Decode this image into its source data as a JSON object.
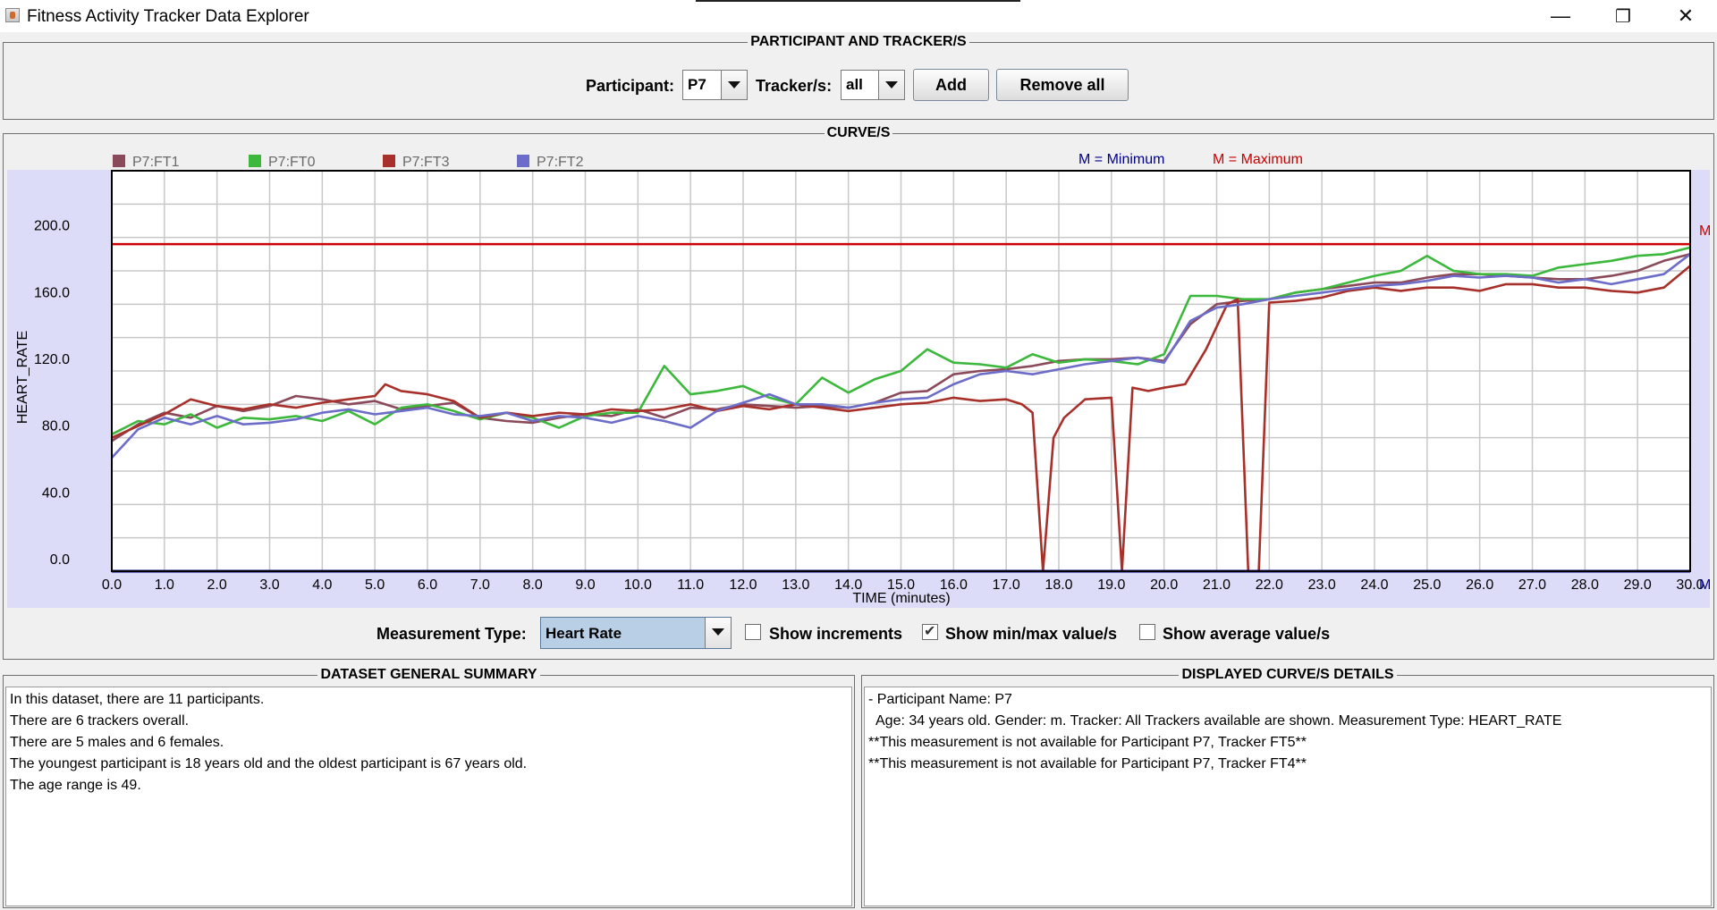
{
  "window": {
    "title": "Fitness Activity Tracker Data Explorer",
    "minimize": "—",
    "restore": "❐",
    "close": "✕"
  },
  "participant_panel": {
    "title": "PARTICIPANT AND TRACKER/S",
    "participant_label": "Participant:",
    "participant_value": "P7",
    "tracker_label": "Tracker/s:",
    "tracker_value": "all",
    "add_label": "Add",
    "remove_all_label": "Remove all"
  },
  "curves_panel": {
    "title": "CURVE/S",
    "min_legend": "M = Minimum",
    "max_legend": "M = Maximum",
    "min_color": "#00008b",
    "max_color": "#cc0000",
    "measurement_label": "Measurement Type:",
    "measurement_value": "Heart Rate",
    "show_increments": "Show increments",
    "show_increments_checked": false,
    "show_minmax": "Show min/max value/s",
    "show_minmax_checked": true,
    "show_average": "Show average value/s",
    "show_average_checked": false
  },
  "chart_data": {
    "type": "line",
    "title": "",
    "xlabel": "TIME (minutes)",
    "ylabel": "HEART_RATE",
    "xlim": [
      0,
      30
    ],
    "ylim": [
      0,
      240
    ],
    "x_ticks": [
      "0.0",
      "1.0",
      "2.0",
      "3.0",
      "4.0",
      "5.0",
      "6.0",
      "7.0",
      "8.0",
      "9.0",
      "10.0",
      "11.0",
      "12.0",
      "13.0",
      "14.0",
      "15.0",
      "16.0",
      "17.0",
      "18.0",
      "19.0",
      "20.0",
      "21.0",
      "22.0",
      "23.0",
      "24.0",
      "25.0",
      "26.0",
      "27.0",
      "28.0",
      "29.0",
      "30.0"
    ],
    "y_ticks": [
      "0.0",
      "40.0",
      "80.0",
      "120.0",
      "160.0",
      "200.0"
    ],
    "grid": true,
    "legend_position": "top-left",
    "max_line": {
      "value": 196,
      "label": "M"
    },
    "min_line": {
      "value": 0,
      "label": "M"
    },
    "series": [
      {
        "name": "P7:FT1",
        "color": "#8b4a5a",
        "x": [
          0,
          0.5,
          1,
          1.5,
          2,
          2.5,
          3,
          3.5,
          4,
          4.5,
          5,
          5.5,
          6,
          6.5,
          7,
          7.5,
          8,
          8.5,
          9,
          9.5,
          10,
          10.5,
          11,
          11.5,
          12,
          12.5,
          13,
          13.5,
          14,
          14.5,
          15,
          15.5,
          16,
          16.5,
          17,
          17.5,
          18,
          18.5,
          19,
          19.5,
          20,
          20.5,
          21,
          21.5,
          22,
          22.5,
          23,
          23.5,
          24,
          24.5,
          25,
          25.5,
          26,
          26.5,
          27,
          27.5,
          28,
          28.5,
          29,
          29.5,
          30
        ],
        "y": [
          78,
          88,
          95,
          92,
          99,
          96,
          99,
          105,
          103,
          100,
          102,
          97,
          99,
          101,
          92,
          90,
          89,
          92,
          94,
          93,
          97,
          92,
          98,
          97,
          100,
          99,
          98,
          99,
          98,
          101,
          107,
          108,
          118,
          120,
          121,
          123,
          126,
          127,
          127,
          128,
          126,
          148,
          160,
          162,
          163,
          167,
          169,
          171,
          173,
          173,
          176,
          178,
          178,
          177,
          176,
          175,
          175,
          177,
          180,
          186,
          190
        ]
      },
      {
        "name": "P7:FT0",
        "color": "#3cb83c",
        "x": [
          0,
          0.5,
          1,
          1.5,
          2,
          2.5,
          3,
          3.5,
          4,
          4.5,
          5,
          5.5,
          6,
          6.5,
          7,
          7.5,
          8,
          8.5,
          9,
          9.5,
          10,
          10.5,
          11,
          11.5,
          12,
          12.5,
          13,
          13.5,
          14,
          14.5,
          15,
          15.5,
          16,
          16.5,
          17,
          17.5,
          18,
          18.5,
          19,
          19.5,
          20,
          20.5,
          21,
          21.5,
          22,
          22.5,
          23,
          23.5,
          24,
          24.5,
          25,
          25.5,
          26,
          26.5,
          27,
          27.5,
          28,
          28.5,
          29,
          29.5,
          30
        ],
        "y": [
          82,
          90,
          88,
          94,
          86,
          92,
          91,
          93,
          90,
          96,
          88,
          98,
          100,
          96,
          91,
          95,
          92,
          86,
          93,
          95,
          95,
          123,
          106,
          108,
          111,
          104,
          100,
          116,
          107,
          115,
          120,
          133,
          125,
          124,
          122,
          130,
          125,
          127,
          126,
          124,
          130,
          165,
          165,
          163,
          163,
          167,
          169,
          173,
          177,
          180,
          189,
          180,
          178,
          178,
          177,
          182,
          184,
          186,
          189,
          190,
          194
        ]
      },
      {
        "name": "P7:FT3",
        "color": "#a8302a",
        "x": [
          0,
          0.5,
          1,
          1.5,
          2,
          2.5,
          3,
          3.5,
          4,
          4.5,
          5,
          5.2,
          5.5,
          6,
          6.5,
          7,
          7.5,
          8,
          8.5,
          9,
          9.5,
          10,
          10.5,
          11,
          11.5,
          12,
          12.5,
          13,
          13.5,
          14,
          14.5,
          15,
          15.5,
          16,
          16.5,
          17,
          17.3,
          17.5,
          17.7,
          17.9,
          18.1,
          18.5,
          19,
          19.2,
          19.4,
          19.7,
          20,
          20.4,
          20.8,
          21.2,
          21.4,
          21.6,
          21.8,
          22,
          22.5,
          23,
          23.5,
          24,
          24.5,
          25,
          25.5,
          26,
          26.5,
          27,
          27.5,
          28,
          28.5,
          29,
          29.5,
          30
        ],
        "y": [
          80,
          87,
          94,
          103,
          99,
          97,
          100,
          98,
          101,
          103,
          105,
          112,
          108,
          106,
          102,
          92,
          95,
          93,
          95,
          94,
          97,
          96,
          97,
          100,
          96,
          99,
          97,
          100,
          98,
          96,
          98,
          100,
          101,
          104,
          102,
          103,
          100,
          95,
          0,
          80,
          92,
          103,
          104,
          0,
          110,
          108,
          110,
          112,
          133,
          160,
          163,
          0,
          0,
          161,
          162,
          164,
          168,
          170,
          168,
          170,
          170,
          168,
          172,
          172,
          170,
          170,
          168,
          167,
          170,
          183
        ]
      },
      {
        "name": "P7:FT2",
        "color": "#6c6cc9",
        "x": [
          0,
          0.5,
          1,
          1.5,
          2,
          2.5,
          3,
          3.5,
          4,
          4.5,
          5,
          5.5,
          6,
          6.5,
          7,
          7.5,
          8,
          8.5,
          9,
          9.5,
          10,
          10.5,
          11,
          11.5,
          12,
          12.5,
          13,
          13.5,
          14,
          14.5,
          15,
          15.5,
          16,
          16.5,
          17,
          17.5,
          18,
          18.5,
          19,
          19.5,
          20,
          20.5,
          21,
          21.5,
          22,
          22.5,
          23,
          23.5,
          24,
          24.5,
          25,
          25.5,
          26,
          26.5,
          27,
          27.5,
          28,
          28.5,
          29,
          29.5,
          30
        ],
        "y": [
          68,
          85,
          92,
          88,
          93,
          88,
          89,
          91,
          95,
          97,
          94,
          96,
          98,
          94,
          93,
          95,
          90,
          93,
          92,
          89,
          93,
          90,
          86,
          96,
          101,
          106,
          100,
          100,
          98,
          101,
          103,
          104,
          112,
          118,
          120,
          118,
          121,
          124,
          126,
          128,
          125,
          150,
          158,
          160,
          163,
          165,
          167,
          169,
          171,
          172,
          174,
          177,
          176,
          177,
          176,
          173,
          175,
          172,
          175,
          178,
          190
        ]
      }
    ]
  },
  "summary_panel": {
    "title": "DATASET GENERAL SUMMARY",
    "lines": [
      "In this dataset, there are 11 participants.",
      "There are 6 trackers overall.",
      "There are 5 males and 6 females.",
      "The youngest participant is 18 years old and the oldest participant is 67 years old.",
      "The age range is 49."
    ]
  },
  "details_panel": {
    "title": "DISPLAYED CURVE/S DETAILS",
    "lines": [
      "- Participant Name: P7",
      "  Age: 34 years old. Gender: m. Tracker: All Trackers available are shown. Measurement Type: HEART_RATE",
      "**This measurement is not available for Participant P7, Tracker FT5**",
      "**This measurement is not available for Participant P7, Tracker FT4**"
    ]
  }
}
